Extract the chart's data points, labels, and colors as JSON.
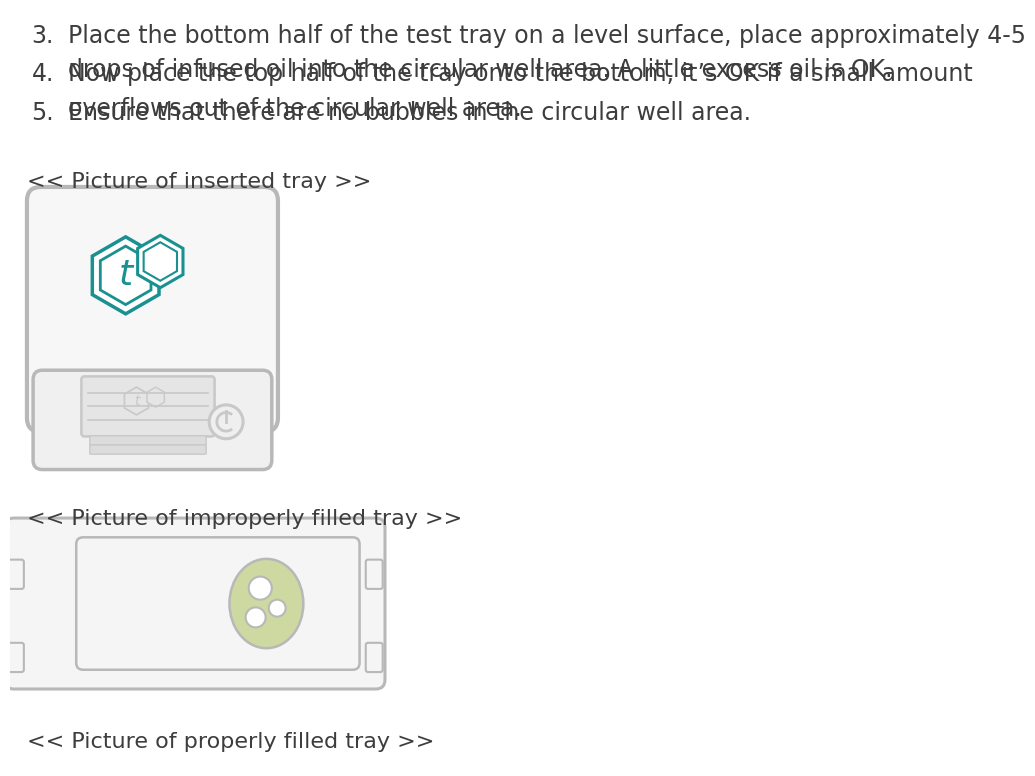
{
  "bg_color": "#ffffff",
  "text_color": "#3d3d3d",
  "gray_outline": "#b8b8b8",
  "teal_color": "#1a9090",
  "light_gray": "#c8c8c8",
  "light_gray2": "#d8d8d8",
  "light_green": "#cdd9a0",
  "font_size_body": 17,
  "font_size_label": 16,
  "items": [
    {
      "num": "3.",
      "text": "Place the bottom half of the test tray on a level surface, place approximately 4-5\ndrops of infused oil into the circular well area. A little excess oil is OK."
    },
    {
      "num": "4.",
      "text": "Now place the top half of the tray onto the bottom, it’s OK if a small amount\noverflows out of the circular well area."
    },
    {
      "num": "5.",
      "text": "Ensure that there are no bubbles in the circular well area."
    }
  ],
  "label1": "<< Picture of inserted tray >>",
  "label2": "<< Picture of improperly filled tray >>",
  "label3": "<< Picture of properly filled tray >>"
}
